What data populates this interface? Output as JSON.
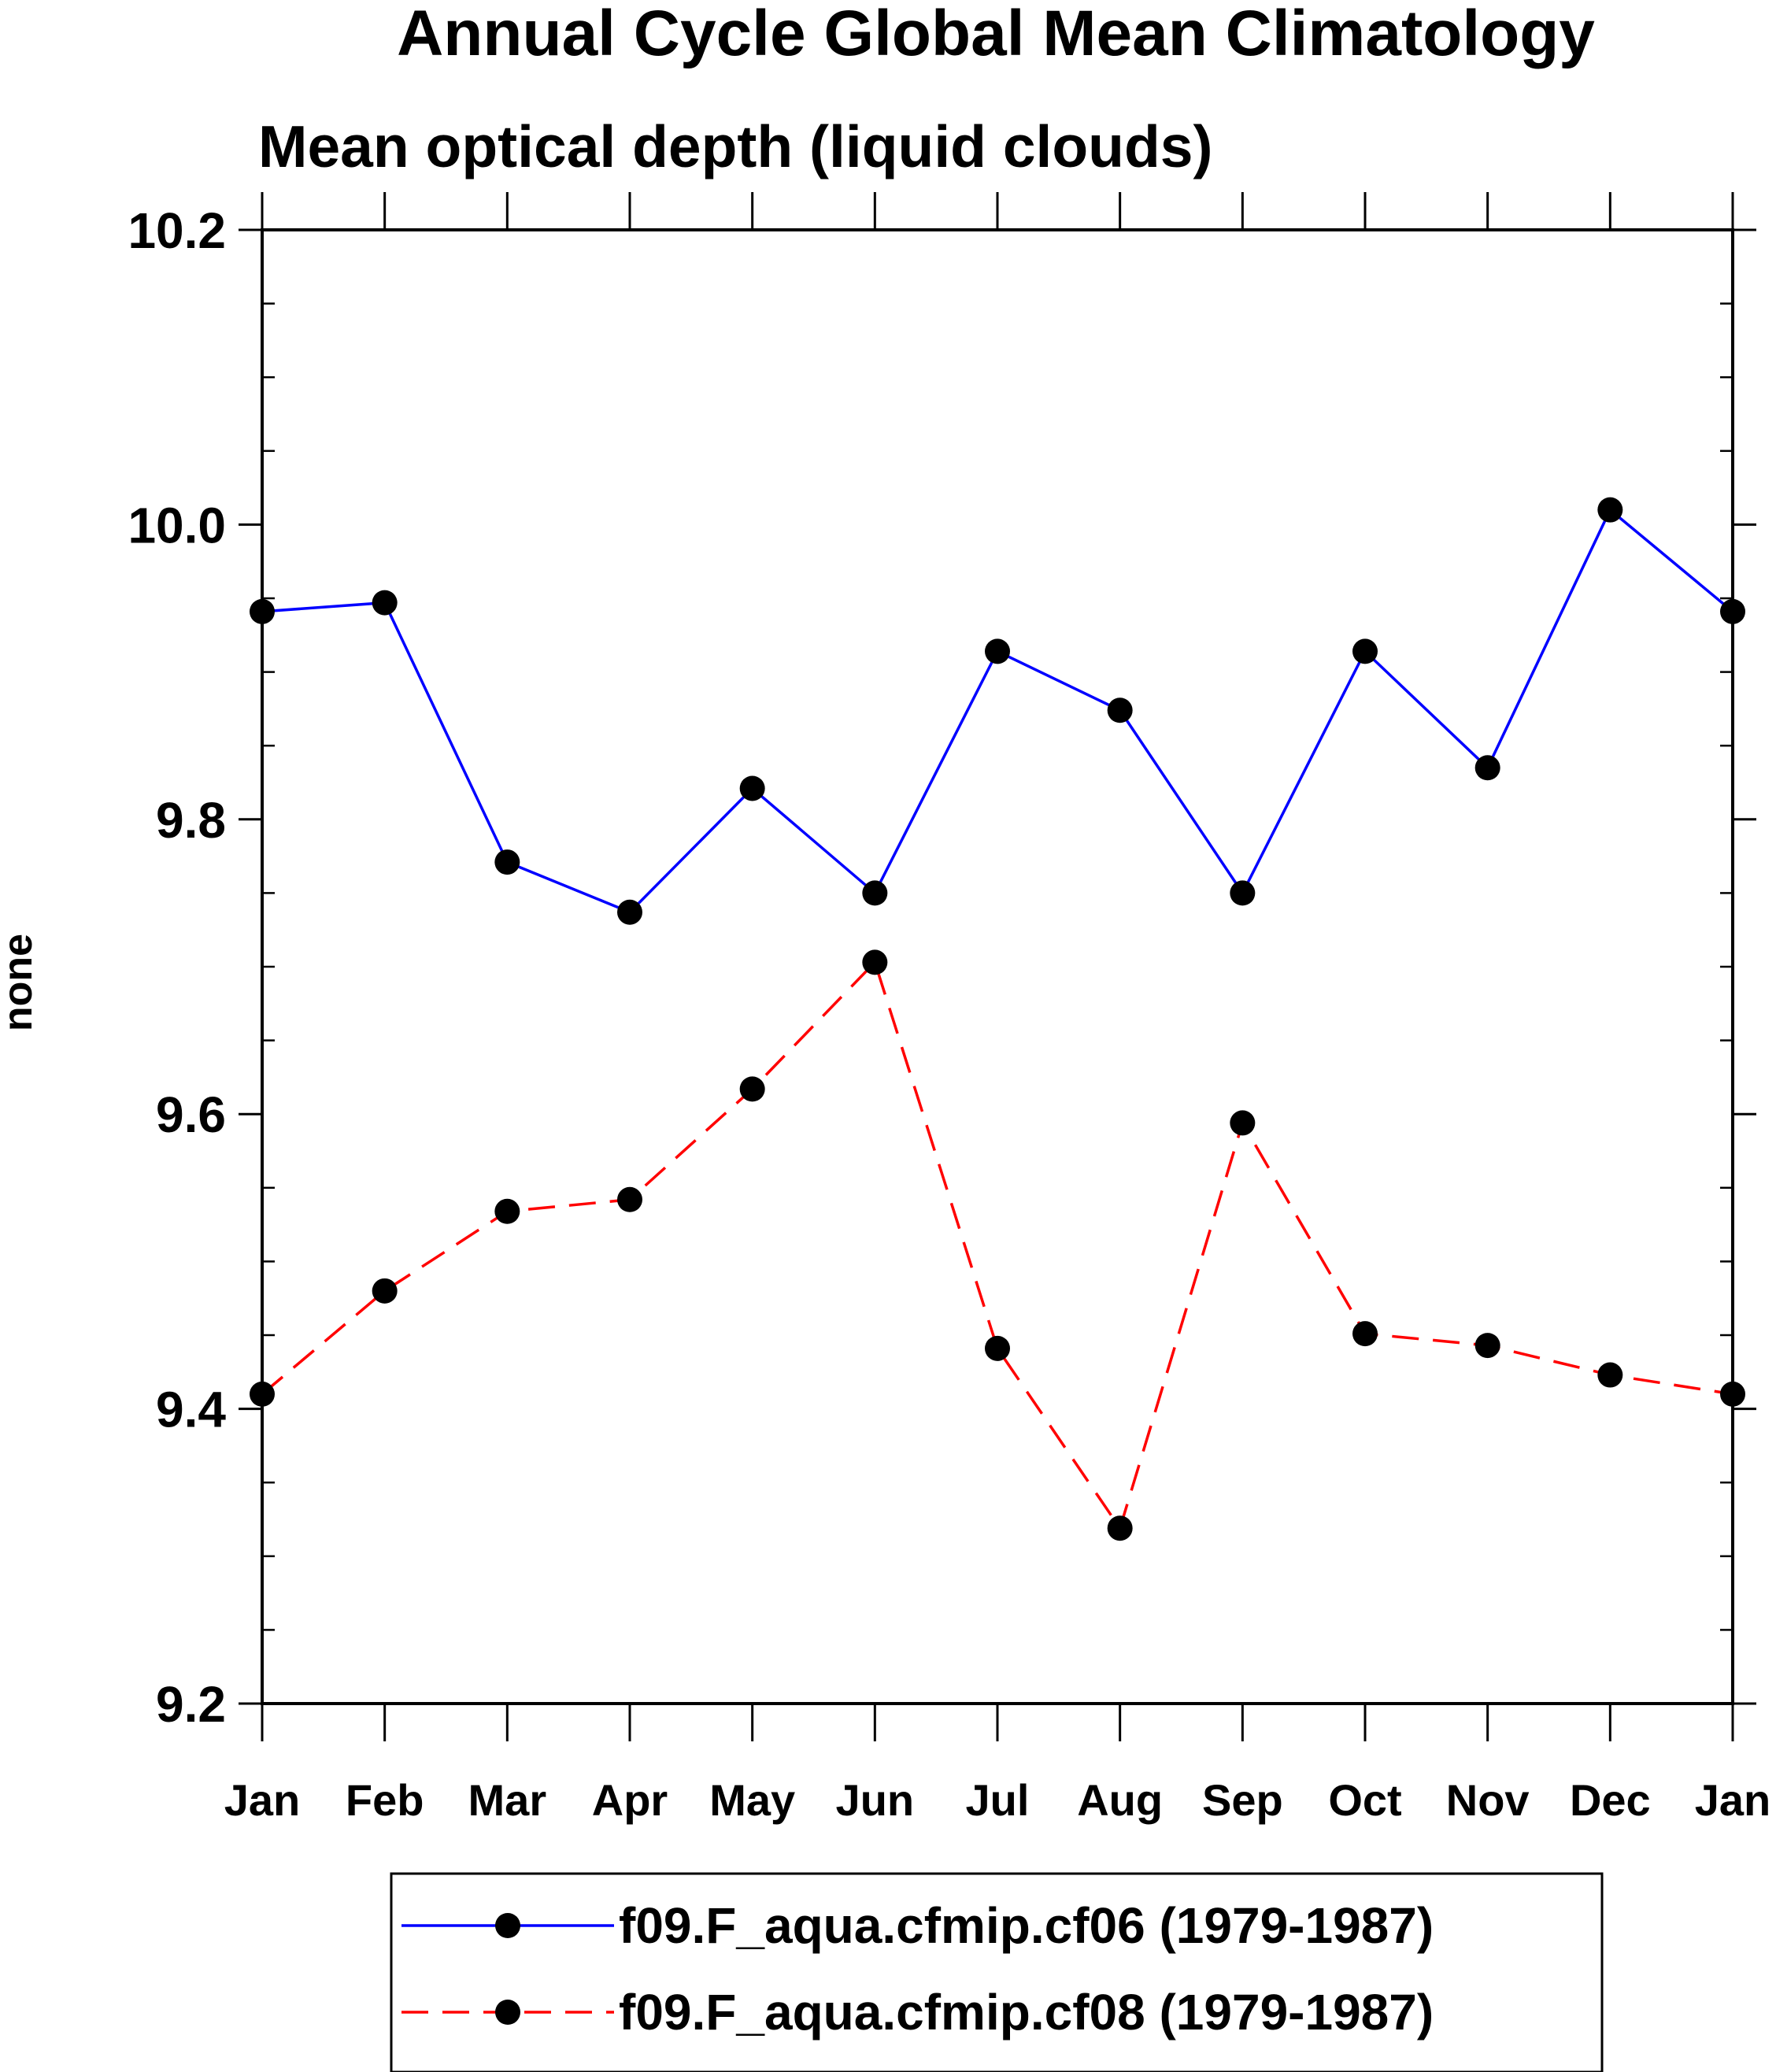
{
  "chart_data": {
    "type": "line",
    "title": "Annual Cycle Global Mean Climatology",
    "subtitle": "Mean optical depth (liquid clouds)",
    "xlabel": "",
    "ylabel": "none",
    "categories": [
      "Jan",
      "Feb",
      "Mar",
      "Apr",
      "May",
      "Jun",
      "Jul",
      "Aug",
      "Sep",
      "Oct",
      "Nov",
      "Dec",
      "Jan"
    ],
    "ylim": [
      9.2,
      10.2
    ],
    "yticks_major": [
      9.2,
      9.4,
      9.6,
      9.8,
      10.0,
      10.2
    ],
    "ytick_labels": [
      "9.2",
      "9.4",
      "9.6",
      "9.8",
      "10.0",
      "10.2"
    ],
    "yticks_minor_step": 0.05,
    "legend_position": "bottom-center",
    "series": [
      {
        "name": "f09.F_aqua.cfmip.cf06 (1979-1987)",
        "color": "#0000ff",
        "line_style": "solid",
        "marker": "filled-circle",
        "marker_color": "#000000",
        "values": [
          9.941,
          9.947,
          9.771,
          9.737,
          9.821,
          9.75,
          9.914,
          9.874,
          9.75,
          9.914,
          9.835,
          10.01,
          9.941
        ]
      },
      {
        "name": "f09.F_aqua.cfmip.cf08 (1979-1987)",
        "color": "#ff0000",
        "line_style": "dashed",
        "marker": "filled-circle",
        "marker_color": "#000000",
        "values": [
          9.41,
          9.48,
          9.534,
          9.542,
          9.617,
          9.703,
          9.441,
          9.319,
          9.594,
          9.451,
          9.443,
          9.423,
          9.41
        ]
      }
    ]
  }
}
